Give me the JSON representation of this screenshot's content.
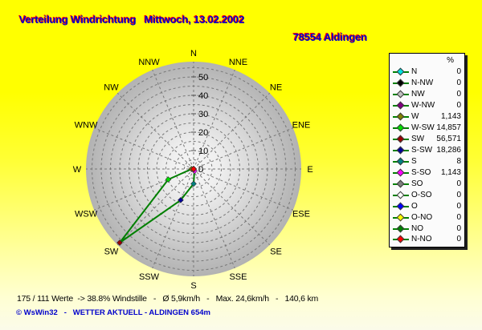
{
  "header": {
    "title": "Verteilung Windrichtung   Mittwoch, 13.02.2002",
    "station": "78554 Aldingen"
  },
  "colors": {
    "title_text": "#0000cc",
    "title_shadow": "#ff0000",
    "background_top": "#ffff00",
    "background_bottom": "#fbfbea",
    "polygon_line": "#008000",
    "grid_dash": "#787878",
    "disc_edge": "#b2b2b2",
    "disc_center": "#f8f8f8",
    "legend_background": "#fbfbfb",
    "copyright_text": "#0000cc"
  },
  "chart_data": {
    "type": "radar",
    "subtype": "wind-rose",
    "title": "Verteilung Windrichtung Mittwoch, 13.02.2002",
    "units": "%",
    "legend_header": "%",
    "radial_ticks": [
      0,
      10,
      20,
      30,
      40,
      50
    ],
    "radial_minor_step": 5,
    "rlim": [
      0,
      60
    ],
    "grid": "dashed",
    "legend_position": "right",
    "compass_labels": [
      "N",
      "NNE",
      "NE",
      "ENE",
      "E",
      "ESE",
      "SE",
      "SSE",
      "S",
      "SSW",
      "SW",
      "WSW",
      "W",
      "WNW",
      "NW",
      "NNW"
    ],
    "series": [
      {
        "label": "N",
        "angle_deg": 0,
        "value": 0,
        "display": "0",
        "color": "#00e0e0"
      },
      {
        "label": "N-NW",
        "angle_deg": 337.5,
        "value": 0,
        "display": "0",
        "color": "#000000"
      },
      {
        "label": "NW",
        "angle_deg": 315,
        "value": 0,
        "display": "0",
        "color": "#c0c0c0"
      },
      {
        "label": "W-NW",
        "angle_deg": 292.5,
        "value": 0,
        "display": "0",
        "color": "#800080"
      },
      {
        "label": "W",
        "angle_deg": 270,
        "value": 1.143,
        "display": "1,143",
        "color": "#808000"
      },
      {
        "label": "W-SW",
        "angle_deg": 247.5,
        "value": 14.857,
        "display": "14,857",
        "color": "#00dd00"
      },
      {
        "label": "SW",
        "angle_deg": 225,
        "value": 56.571,
        "display": "56,571",
        "color": "#990000"
      },
      {
        "label": "S-SW",
        "angle_deg": 202.5,
        "value": 18.286,
        "display": "18,286",
        "color": "#000099"
      },
      {
        "label": "S",
        "angle_deg": 180,
        "value": 8,
        "display": "8",
        "color": "#008080"
      },
      {
        "label": "S-SO",
        "angle_deg": 157.5,
        "value": 1.143,
        "display": "1,143",
        "color": "#ff00ff"
      },
      {
        "label": "SO",
        "angle_deg": 135,
        "value": 0,
        "display": "0",
        "color": "#808080"
      },
      {
        "label": "O-SO",
        "angle_deg": 112.5,
        "value": 0,
        "display": "0",
        "color": "#ffffff"
      },
      {
        "label": "O",
        "angle_deg": 90,
        "value": 0,
        "display": "0",
        "color": "#0000ff"
      },
      {
        "label": "O-NO",
        "angle_deg": 67.5,
        "value": 0,
        "display": "0",
        "color": "#ffff00"
      },
      {
        "label": "NO",
        "angle_deg": 45,
        "value": 0,
        "display": "0",
        "color": "#008000"
      },
      {
        "label": "N-NO",
        "angle_deg": 22.5,
        "value": 0,
        "display": "0",
        "color": "#ff0000"
      }
    ]
  },
  "footer": {
    "stats": "175 / 111 Werte  -> 38.8% Windstille   -   Ø 5,9km/h   -   Max. 24,6km/h   -   140,6 km",
    "copyright": "© WsWin32   -   WETTER AKTUELL - ALDINGEN 654m"
  }
}
